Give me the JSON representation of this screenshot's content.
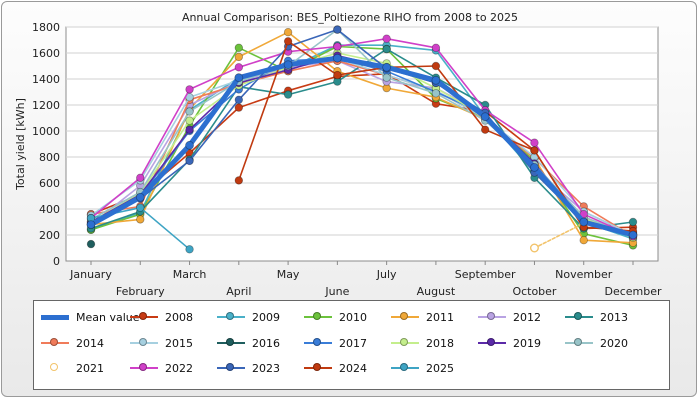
{
  "chart_data": {
    "type": "line",
    "title": "Annual Comparison: BES_Poltiezone RIHO from 2008 to 2025",
    "xlabel": "",
    "ylabel": "Total yield [kWh]",
    "ylim": [
      0,
      1800
    ],
    "yticks": [
      0,
      200,
      400,
      600,
      800,
      1000,
      1200,
      1400,
      1600,
      1800
    ],
    "categories": [
      "January",
      "February",
      "March",
      "April",
      "May",
      "June",
      "July",
      "August",
      "September",
      "October",
      "November",
      "December"
    ],
    "grid": true,
    "legend_position": "bottom",
    "series": [
      {
        "name": "Mean value",
        "color": "#2c6fd0",
        "mean": true,
        "values": [
          280,
          490,
          890,
          1410,
          1510,
          1560,
          1490,
          1390,
          1110,
          720,
          300,
          200
        ]
      },
      {
        "name": "2008",
        "color": "#c83b14",
        "values": [
          360,
          510,
          830,
          1180,
          1310,
          1420,
          1440,
          1210,
          1150,
          850,
          250,
          260
        ]
      },
      {
        "name": "2009",
        "color": "#4ab0c8",
        "values": [
          240,
          370,
          1160,
          1410,
          1480,
          1660,
          1660,
          1620,
          1110,
          680,
          300,
          170
        ]
      },
      {
        "name": "2010",
        "color": "#6cc23c",
        "values": [
          240,
          360,
          1040,
          1640,
          1460,
          1650,
          1630,
          1250,
          1100,
          770,
          210,
          120
        ]
      },
      {
        "name": "2011",
        "color": "#f0a838",
        "values": [
          280,
          320,
          1170,
          1570,
          1760,
          1460,
          1330,
          1260,
          1090,
          790,
          160,
          140
        ]
      },
      {
        "name": "2012",
        "color": "#b9a3e3",
        "values": [
          280,
          580,
          1200,
          1380,
          1490,
          1540,
          1380,
          1330,
          1130,
          710,
          380,
          200
        ]
      },
      {
        "name": "2013",
        "color": "#2a8c8c",
        "values": [
          250,
          380,
          780,
          1340,
          1280,
          1380,
          1630,
          1410,
          1200,
          640,
          250,
          300
        ]
      },
      {
        "name": "2014",
        "color": "#f07b5a",
        "values": [
          360,
          420,
          1240,
          1360,
          1460,
          1540,
          1430,
          1310,
          1100,
          790,
          420,
          190
        ]
      },
      {
        "name": "2015",
        "color": "#a6d0e0",
        "values": [
          350,
          620,
          1260,
          1390,
          1500,
          1560,
          1430,
          1310,
          1100,
          800,
          380,
          200
        ]
      },
      {
        "name": "2016",
        "color": "#1f5e5e",
        "values": [
          130,
          null,
          null,
          null,
          null,
          null,
          null,
          null,
          null,
          null,
          null,
          null
        ]
      },
      {
        "name": "2017",
        "color": "#3a7dd8",
        "values": [
          290,
          500,
          1000,
          1320,
          1540,
          1560,
          1460,
          1300,
          1130,
          700,
          310,
          210
        ]
      },
      {
        "name": "2018",
        "color": "#c4ee8c",
        "values": [
          300,
          520,
          1080,
          1350,
          1490,
          1600,
          1520,
          1330,
          1110,
          740,
          330,
          180
        ]
      },
      {
        "name": "2019",
        "color": "#5b2aa8",
        "values": [
          300,
          510,
          1010,
          1370,
          1470,
          1580,
          1490,
          1370,
          1120,
          750,
          310,
          200
        ]
      },
      {
        "name": "2020",
        "color": "#98c4c8",
        "values": [
          320,
          530,
          1150,
          1380,
          1500,
          1780,
          1410,
          1290,
          1080,
          740,
          340,
          190
        ]
      },
      {
        "name": "2021",
        "color": "#f2c36a",
        "hollow": true,
        "values": [
          null,
          null,
          null,
          null,
          null,
          null,
          null,
          null,
          null,
          100,
          290,
          null
        ]
      },
      {
        "name": "2022",
        "color": "#d040c8",
        "values": [
          330,
          640,
          1320,
          1490,
          1610,
          1650,
          1710,
          1640,
          1160,
          910,
          360,
          190
        ]
      },
      {
        "name": "2023",
        "color": "#3a66b8",
        "values": [
          280,
          480,
          770,
          1240,
          1650,
          1780,
          1480,
          1370,
          1140,
          680,
          300,
          220
        ]
      },
      {
        "name": "2024",
        "color": "#c03a10",
        "values": [
          null,
          null,
          null,
          620,
          1690,
          1430,
          1490,
          1500,
          1010,
          850,
          260,
          230
        ]
      },
      {
        "name": "2025",
        "color": "#3ea4c4",
        "values": [
          330,
          410,
          90,
          null,
          null,
          null,
          null,
          null,
          null,
          null,
          null,
          null
        ]
      }
    ]
  }
}
